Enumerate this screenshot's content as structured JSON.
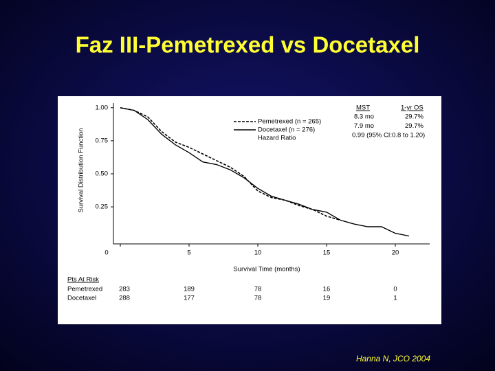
{
  "chart_data": {
    "type": "line",
    "title": "Faz III-Pemetrexed vs Docetaxel",
    "xlabel": "Survival Time (months)",
    "ylabel": "Survival Distribution Function",
    "x": [
      0,
      1,
      2,
      3,
      4,
      5,
      6,
      7,
      8,
      9,
      10,
      11,
      12,
      13,
      14,
      15,
      16,
      17,
      18,
      19,
      20,
      21
    ],
    "series": [
      {
        "name": "Pemetrexed (n = 265)",
        "color": "#000000",
        "dash": true,
        "values": [
          1.0,
          0.98,
          0.93,
          0.82,
          0.74,
          0.7,
          0.65,
          0.6,
          0.55,
          0.48,
          0.37,
          0.32,
          0.3,
          0.26,
          0.23,
          0.18,
          0.15,
          null,
          null,
          null,
          null,
          null
        ]
      },
      {
        "name": "Docetaxel (n = 276)",
        "color": "#000000",
        "dash": false,
        "values": [
          1.0,
          0.98,
          0.91,
          0.8,
          0.72,
          0.66,
          0.59,
          0.57,
          0.53,
          0.47,
          0.39,
          0.33,
          0.3,
          0.27,
          0.23,
          0.21,
          0.15,
          0.12,
          0.1,
          0.1,
          0.05,
          0.03
        ]
      }
    ],
    "xlim": [
      -0.5,
      22.5
    ],
    "ylim": [
      -0.03,
      1.03
    ],
    "xticks": [
      0,
      5,
      10,
      15,
      20
    ],
    "yticks": [
      {
        "value": 0.25,
        "label": "0.25"
      },
      {
        "value": 0.5,
        "label": "0.50"
      },
      {
        "value": 0.75,
        "label": "0.75"
      },
      {
        "value": 1.0,
        "label": "1.00"
      }
    ],
    "legend_extra": "Hazard Ratio",
    "legend_table": {
      "headers": [
        "MST",
        "1-yr OS"
      ],
      "rows": [
        [
          "8.3 mo",
          "29.7%"
        ],
        [
          "7.9 mo",
          "29.7%"
        ],
        [
          "0.99 (95% CI:0.8 to 1.20)"
        ]
      ]
    },
    "risk_table": {
      "title": "Pts At Risk",
      "rows": [
        {
          "label": "Pemetrexed",
          "values": [
            283,
            189,
            78,
            16,
            0
          ]
        },
        {
          "label": "Docetaxel",
          "values": [
            288,
            177,
            78,
            19,
            1
          ]
        }
      ]
    },
    "source": "Hanna N, JCO 2004"
  }
}
